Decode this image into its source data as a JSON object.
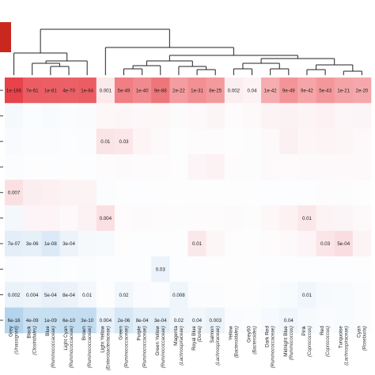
{
  "chart_data": {
    "type": "heatmap",
    "columns": [
      {
        "name": "Grey",
        "sub": "(Unassigned)"
      },
      {
        "name": "Black",
        "sub": "(Clostridiales)"
      },
      {
        "name": "Blue",
        "sub": "(Ruminococcaceae)"
      },
      {
        "name": "Light Cyan",
        "sub": "(Ruminococcaceae)"
      },
      {
        "name": "Brown",
        "sub": "(Ruminococcaceae)"
      },
      {
        "name": "Light Yellow",
        "sub": "(Enterobacteriaceae)"
      },
      {
        "name": "Green",
        "sub": "(Ruminococcaceae)"
      },
      {
        "name": "Purple",
        "sub": "(Ruminococcaceae)"
      },
      {
        "name": "Green Yellow",
        "sub": "(Ruminococcaceae)"
      },
      {
        "name": "Magenta",
        "sub": "(Lachnospiraceae)"
      },
      {
        "name": "Royal Blue",
        "sub": "(Dorea)"
      },
      {
        "name": "Salmon",
        "sub": "(Lachnospiraceae)"
      },
      {
        "name": "Yellow",
        "sub": "(Bacteroidales)"
      },
      {
        "name": "Grey60",
        "sub": "(Bacteroides)"
      },
      {
        "name": "Dark Red",
        "sub": "(Ruminococcaceae)"
      },
      {
        "name": "Midnight Blue",
        "sub": "(Ruminococcus)"
      },
      {
        "name": "Pink",
        "sub": "(Coprococcus)"
      },
      {
        "name": "Red",
        "sub": "(Coprococcus)"
      },
      {
        "name": "Turquoise",
        "sub": "(Lachnospiraceae)"
      },
      {
        "name": "Cyan",
        "sub": "(Roseburia)"
      }
    ],
    "rows": [
      {
        "labels": [
          "1e-166",
          "7e-61",
          "1e-81",
          "4e-70",
          "1e-84",
          "0.001",
          "5e-49",
          "1e-40",
          "9e-88",
          "2e-22",
          "1e-31",
          "8e-25",
          "0.002",
          "0.04",
          "1e-42",
          "9e-49",
          "9e-42",
          "5e-43",
          "1e-21",
          "2e-20"
        ],
        "colors": [
          "#e8424a",
          "#eb5d63",
          "#eb5e64",
          "#eb6066",
          "#eb5d63",
          "#fbeaeb",
          "#f07e83",
          "#f18a8e",
          "#ee767b",
          "#f39da0",
          "#f28f93",
          "#f39a9d",
          "#fbeef0",
          "#fdf2f4",
          "#f5acaf",
          "#f39598",
          "#f5a5a8",
          "#f3979a",
          "#f4a3a6",
          "#f5a8ab"
        ]
      },
      {
        "labels": [
          "",
          "",
          "",
          "",
          "",
          "",
          "",
          "",
          "",
          "",
          "",
          "",
          "",
          "",
          "",
          "",
          "",
          "",
          "",
          ""
        ],
        "colors": [
          "#f6f9fc",
          "#fbfcfe",
          "#f8fbfd",
          "#fafcfe",
          "#f9fbfd",
          "#fdf7f8",
          "#fdf6f7",
          "#fcf8f9",
          "#fdf7f8",
          "#fcfbfc",
          "#fdf8f9",
          "#fcf5f6",
          "#fdfbfc",
          "#fdf9fa",
          "#fcf3f5",
          "#fcf2f4",
          "#fdf4f6",
          "#fdf1f3",
          "#fdf6f8",
          "#fcf5f7"
        ]
      },
      {
        "labels": [
          "",
          "",
          "",
          "",
          "",
          "0.01",
          "0.03",
          "",
          "",
          "",
          "",
          "",
          "",
          "",
          "",
          "",
          "",
          "",
          "",
          ""
        ],
        "colors": [
          "#f8fafd",
          "#fbfcfe",
          "#fbfcfe",
          "#fcfdfe",
          "#fbfcfe",
          "#fbe4e6",
          "#fbe7e9",
          "#fcf4f5",
          "#fdf8f9",
          "#fdfdfe",
          "#fdfbfc",
          "#fdfbfc",
          "#fdfdfe",
          "#fdfcfd",
          "#fdf8f9",
          "#fbf0f2",
          "#fcf6f7",
          "#fdf4f5",
          "#fcf6f7",
          "#fdf8f9"
        ]
      },
      {
        "labels": [
          "",
          "",
          "",
          "",
          "",
          "",
          "",
          "",
          "",
          "",
          "",
          "",
          "",
          "",
          "",
          "",
          "",
          "",
          "",
          ""
        ],
        "colors": [
          "#fbfcfe",
          "#fdfdfe",
          "#fcfdfe",
          "#fdfdfe",
          "#fcfdfe",
          "#fdfbfc",
          "#fdfafb",
          "#fdfbfc",
          "#fdfbfc",
          "#fdfdfe",
          "#fcf5f7",
          "#fcf2f4",
          "#fdfbfc",
          "#fdfcfd",
          "#fdf9fa",
          "#fdfafb",
          "#fdf9fa",
          "#fdf9fa",
          "#fdf8f9",
          "#fdf9fa"
        ]
      },
      {
        "labels": [
          "0.007",
          "",
          "",
          "",
          "",
          "",
          "",
          "",
          "",
          "",
          "",
          "",
          "",
          "",
          "",
          "",
          "",
          "",
          "",
          ""
        ],
        "colors": [
          "#fbe0e3",
          "#fbeef0",
          "#fcf0f2",
          "#fcf3f4",
          "#fcf3f4",
          "#fbfcfe",
          "#fdfdfe",
          "#fcfdfe",
          "#fdfdfe",
          "#fdfdfe",
          "#fdfdfe",
          "#fdfdfe",
          "#fdfdfe",
          "#fdfdfe",
          "#fcfdfe",
          "#fcfdfe",
          "#fcfdfe",
          "#fdfbfc",
          "#fdfcfd",
          "#fdfdfe"
        ]
      },
      {
        "labels": [
          "",
          "",
          "",
          "",
          "",
          "0.004",
          "",
          "",
          "",
          "",
          "",
          "",
          "",
          "",
          "",
          "",
          "0.01",
          "",
          "",
          ""
        ],
        "colors": [
          "#f4f8fc",
          "#fcf4f6",
          "#fcf4f6",
          "#fdf8f9",
          "#fcf2f4",
          "#fbe0e3",
          "#fdfbfc",
          "#fdfafb",
          "#fdfbfc",
          "#fdfcfd",
          "#fdfbfc",
          "#fdfbfc",
          "#fdfafb",
          "#fdfcfd",
          "#fdf7f8",
          "#fcf2f4",
          "#fbe7e9",
          "#fcf3f5",
          "#fcf5f7",
          "#fdf8f9"
        ]
      },
      {
        "labels": [
          "7e-07",
          "3e-06",
          "1e-08",
          "3e-04",
          "",
          "",
          "",
          "",
          "",
          "",
          "0.01",
          "",
          "",
          "",
          "",
          "",
          "",
          "0.03",
          "5e-04",
          ""
        ],
        "colors": [
          "#e3eef8",
          "#e6f0f9",
          "#dceaf7",
          "#ecf3fa",
          "#f5f9fc",
          "#f7fafd",
          "#fdfdfe",
          "#fcfdfe",
          "#fdfdfe",
          "#fdfdfe",
          "#fbe8ea",
          "#fdf6f7",
          "#fdfdfe",
          "#fdfdfe",
          "#fdfbfc",
          "#fdf9fa",
          "#fcf4f6",
          "#fbe5e8",
          "#fadde0",
          "#fcf3f5"
        ]
      },
      {
        "labels": [
          "",
          "",
          "",
          "",
          "",
          "",
          "",
          "",
          "0.03",
          "",
          "",
          "",
          "",
          "",
          "",
          "",
          "",
          "",
          "",
          ""
        ],
        "colors": [
          "#f9fbfe",
          "#fbfcfe",
          "#fbfcfe",
          "#fcfdfe",
          "#fbfcfe",
          "#fcfdfe",
          "#fcfdfe",
          "#fcfdfe",
          "#ecf3fa",
          "#fcfdfe",
          "#fcfdfe",
          "#fdfdfe",
          "#fdfdfe",
          "#fdfdfe",
          "#fcfdfe",
          "#fcfdfe",
          "#fcfdfe",
          "#fcfdfe",
          "#fcfdfe",
          "#fdfdfe"
        ]
      },
      {
        "labels": [
          "0.002",
          "0.004",
          "5e-04",
          "8e-04",
          "0.01",
          "",
          "0.02",
          "",
          "",
          "0.008",
          "",
          "",
          "",
          "",
          "",
          "",
          "0.01",
          "",
          "",
          ""
        ],
        "colors": [
          "#eaf2fa",
          "#edf4fa",
          "#e8f1f9",
          "#ebf2fa",
          "#f4f8fc",
          "#fdfdfe",
          "#f2f7fc",
          "#f9fbfe",
          "#fafcfe",
          "#eef5fb",
          "#fafcfe",
          "#fbfcfe",
          "#fdfdfe",
          "#fdfdfe",
          "#fbfcfe",
          "#f8fbfd",
          "#f0f6fb",
          "#f7fafd",
          "#f8fbfd",
          "#fafcfe"
        ]
      },
      {
        "labels": [
          "6e-16",
          "4e-09",
          "1e-09",
          "6e-10",
          "3e-10",
          "0.004",
          "2e-06",
          "8e-04",
          "3e-04",
          "0.02",
          "0.04",
          "0.003",
          "",
          "",
          "",
          "0.04",
          "",
          "",
          "",
          ""
        ],
        "colors": [
          "#b3d4ec",
          "#c8e0f1",
          "#c6dff1",
          "#c4ddf0",
          "#c3dcf0",
          "#e9f2fa",
          "#d6e7f5",
          "#e4eef8",
          "#e1edf7",
          "#eef5fb",
          "#f1f6fb",
          "#ebf3fa",
          "#f9fbfe",
          "#fafcfe",
          "#f6f9fd",
          "#f0f6fb",
          "#f7fafd",
          "#f9fbfe",
          "#f8fbfd",
          "#fafcfe"
        ]
      }
    ]
  },
  "colorbar_color": "#c9281e"
}
